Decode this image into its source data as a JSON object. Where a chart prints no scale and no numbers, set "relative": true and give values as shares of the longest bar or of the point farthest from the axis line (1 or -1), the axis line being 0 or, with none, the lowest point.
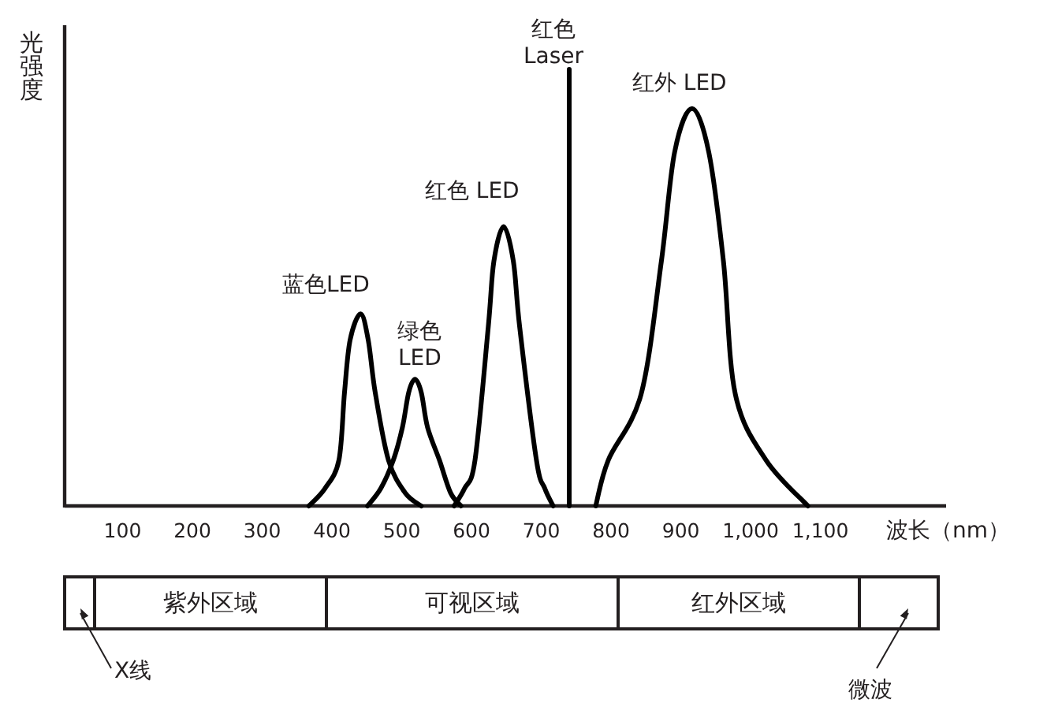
{
  "chart_data": {
    "type": "line",
    "relative": true,
    "xlabel": "波长（nm）",
    "ylabel": "光强度",
    "xlim": [
      17,
      1280
    ],
    "xticks": [
      100,
      200,
      300,
      400,
      500,
      600,
      700,
      800,
      900,
      {
        "value": 1000,
        "label": "1,000"
      },
      {
        "value": 1100,
        "label": "1,100"
      }
    ],
    "marker": "none",
    "line_style": "solid",
    "legend": false,
    "grid": false,
    "series": [
      {
        "name": "蓝色LED",
        "color": "#000000",
        "x": [
          367,
          390,
          410,
          418,
          426,
          441,
          452,
          462,
          481,
          505,
          528
        ],
        "values": [
          0,
          0.04,
          0.105,
          0.26,
          0.38,
          0.44,
          0.38,
          0.26,
          0.105,
          0.03,
          0
        ]
      },
      {
        "name": "绿色 LED",
        "color": "#000000",
        "x": [
          451,
          470,
          488,
          501,
          510,
          519,
          528,
          537,
          554,
          570,
          585
        ],
        "values": [
          0,
          0.04,
          0.105,
          0.18,
          0.26,
          0.29,
          0.26,
          0.18,
          0.105,
          0.03,
          0
        ]
      },
      {
        "name": "红色 LED",
        "color": "#000000",
        "x": [
          575,
          590,
          605,
          624,
          632,
          646,
          660,
          669,
          693,
          705,
          717
        ],
        "values": [
          0,
          0.04,
          0.105,
          0.41,
          0.56,
          0.64,
          0.56,
          0.41,
          0.105,
          0.04,
          0
        ]
      },
      {
        "name": "红色 Laser",
        "color": "#000000",
        "x": [
          740,
          740
        ],
        "values": [
          0,
          1
        ]
      },
      {
        "name": "红外 LED",
        "color": "#000000",
        "x": [
          778,
          796,
          843,
          872,
          891,
          916,
          940,
          961,
          978,
          1022,
          1082
        ],
        "values": [
          0,
          0.105,
          0.256,
          0.56,
          0.81,
          0.91,
          0.81,
          0.56,
          0.256,
          0.105,
          0
        ]
      }
    ],
    "annotations": [
      "X线",
      "紫外区域",
      "可视区域",
      "红外区域",
      "微波"
    ]
  }
}
